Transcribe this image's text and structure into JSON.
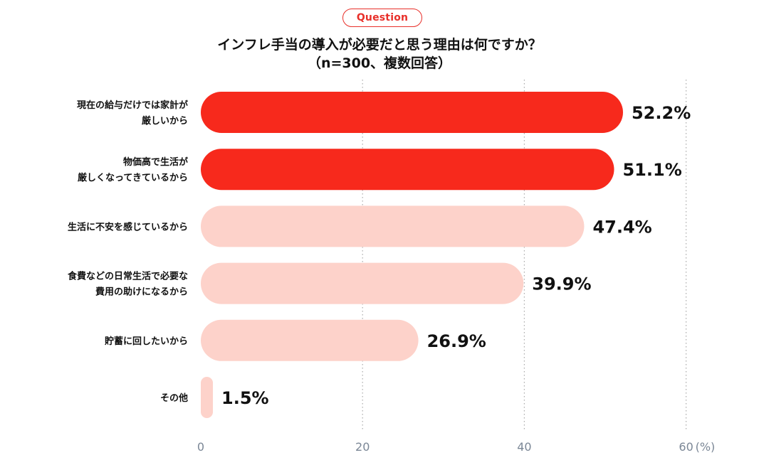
{
  "badge": "Question",
  "title": "インフレ手当の導入が必要だと思う理由は何ですか？",
  "subtitle": "（n=300、複数回答）",
  "colors": {
    "accent": "#f7291c",
    "bar_highlight": "#f7291c",
    "bar_muted": "#fdd2ca",
    "grid": "#aaaaaa",
    "axis_text": "#7b8796"
  },
  "chart_data": {
    "type": "bar",
    "orientation": "horizontal",
    "categories": [
      [
        "現在の給与だけでは家計が",
        "厳しいから"
      ],
      [
        "物価高で生活が",
        "厳しくなってきているから"
      ],
      [
        "生活に不安を感じているから"
      ],
      [
        "食費などの日常生活で必要な",
        "費用の助けになるから"
      ],
      [
        "貯蓄に回したいから"
      ],
      [
        "その他"
      ]
    ],
    "values": [
      52.2,
      51.1,
      47.4,
      39.9,
      26.9,
      1.5
    ],
    "value_labels": [
      "52.2%",
      "51.1%",
      "47.4%",
      "39.9%",
      "26.9%",
      "1.5%"
    ],
    "highlighted": [
      true,
      true,
      false,
      false,
      false,
      false
    ],
    "xlim": [
      0,
      60
    ],
    "xticks": [
      0,
      20,
      40,
      60
    ],
    "xtick_labels": [
      "0",
      "20",
      "40",
      "60"
    ],
    "xunit": "(%)",
    "grid": "vertical dotted"
  }
}
